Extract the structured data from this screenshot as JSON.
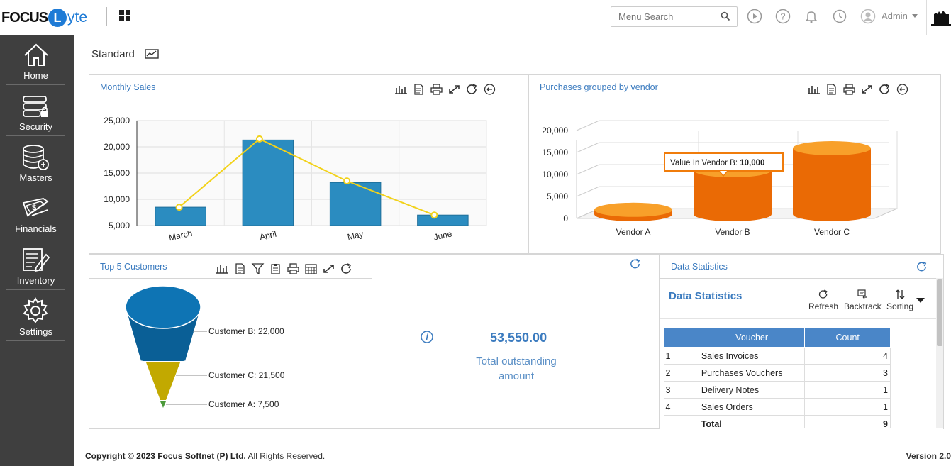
{
  "header": {
    "logo_focus": "FOCUS",
    "logo_letter": "L",
    "logo_lyte": "yte",
    "search_placeholder": "Menu Search",
    "user_name": "Admin"
  },
  "sidebar": {
    "items": [
      {
        "label": "Home",
        "icon": "home-icon"
      },
      {
        "label": "Security",
        "icon": "security-icon"
      },
      {
        "label": "Masters",
        "icon": "masters-icon"
      },
      {
        "label": "Financials",
        "icon": "financials-icon"
      },
      {
        "label": "Inventory",
        "icon": "inventory-icon"
      },
      {
        "label": "Settings",
        "icon": "settings-icon"
      }
    ]
  },
  "dashboard": {
    "title": "Standard"
  },
  "panels": {
    "monthly_sales": {
      "title": "Monthly Sales"
    },
    "purchases": {
      "title": "Purchases grouped by vendor",
      "tooltip_label": "Value In Vendor B:",
      "tooltip_value": "10,000"
    },
    "top_customers": {
      "title": "Top 5 Customers"
    },
    "outstanding": {
      "value": "53,550.00",
      "label": "Total outstanding amount"
    },
    "data_statistics": {
      "title": "Data Statistics",
      "subtitle": "Data Statistics",
      "refresh_label": "Refresh",
      "backtrack_label": "Backtrack",
      "sorting_label": "Sorting",
      "columns": [
        "",
        "Voucher",
        "Count"
      ],
      "rows": [
        {
          "no": "1",
          "voucher": "Sales Invoices",
          "count": "4"
        },
        {
          "no": "2",
          "voucher": "Purchases Vouchers",
          "count": "3"
        },
        {
          "no": "3",
          "voucher": "Delivery Notes",
          "count": "1"
        },
        {
          "no": "4",
          "voucher": "Sales Orders",
          "count": "1"
        }
      ],
      "total_label": "Total",
      "total_value": "9"
    }
  },
  "chart_data": [
    {
      "type": "bar",
      "title": "Monthly Sales",
      "categories": [
        "March",
        "April",
        "May",
        "June"
      ],
      "series": [
        {
          "values": [
            8500,
            21300,
            13200,
            7000
          ]
        },
        {
          "values": [
            8500,
            21500,
            13500,
            7000
          ]
        }
      ],
      "ylim": [
        5000,
        25000
      ],
      "yticks": [
        "5,000",
        "10,000",
        "15,000",
        "20,000",
        "25,000"
      ],
      "colors": [
        "#2b8cc0",
        "#f2d21b"
      ]
    },
    {
      "type": "bar",
      "title": "Purchases grouped by vendor",
      "categories": [
        "Vendor A",
        "Vendor B",
        "Vendor C"
      ],
      "values": [
        1000,
        10000,
        15000
      ],
      "ylim": [
        0,
        20000
      ],
      "yticks": [
        "0",
        "5,000",
        "10,000",
        "15,000",
        "20,000"
      ],
      "colors": [
        "#f07c0b"
      ]
    },
    {
      "type": "funnel",
      "title": "Top 5 Customers",
      "categories": [
        "Customer B",
        "Customer C",
        "Customer A"
      ],
      "values": [
        22000,
        21500,
        7500
      ],
      "labels": [
        "Customer B: 22,000",
        "Customer C: 21,500",
        "Customer A: 7,500"
      ],
      "colors": [
        "#0b6aa6",
        "#c2a900",
        "#4c9a3a"
      ]
    }
  ],
  "footer": {
    "copyright_prefix": "Copyright © 2023 Focus Softnet (P) Ltd.",
    "copyright_suffix": " All Rights Reserved.",
    "version": "Version 2.0"
  }
}
